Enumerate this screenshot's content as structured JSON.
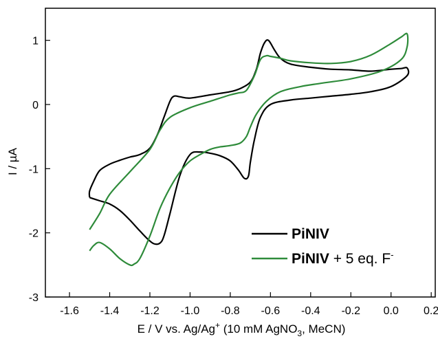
{
  "chart_data": {
    "type": "line",
    "xlabel": "E / V vs. Ag/Ag+ (10 mM AgNO3, MeCN)",
    "xlabel_parts": {
      "before_sup": "E / V vs. Ag/Ag",
      "sup": "+",
      "middle": " (10 mM AgNO",
      "sub": "3",
      "after": ", MeCN)"
    },
    "ylabel": "I / µA",
    "xlim": [
      -1.72,
      0.22
    ],
    "ylim": [
      -3,
      1.5
    ],
    "xticks": [
      -1.6,
      -1.4,
      -1.2,
      -1.0,
      -0.8,
      -0.6,
      -0.4,
      -0.2,
      0.0,
      0.2
    ],
    "xtick_labels": [
      "-1.6",
      "-1.4",
      "-1.2",
      "-1.0",
      "-0.8",
      "-0.6",
      "-0.4",
      "-0.2",
      "0.0",
      "0.2"
    ],
    "yticks": [
      -3,
      -2,
      -1,
      0,
      1
    ],
    "ytick_labels": [
      "-3",
      "-2",
      "-1",
      "0",
      "1"
    ],
    "grid": false,
    "legend_position": "bottom-right",
    "series": [
      {
        "name": "PiNIV",
        "legend_bold": "PiNIV",
        "legend_rest": "",
        "color": "#000000",
        "x": [
          -1.5,
          -1.45,
          -1.4,
          -1.35,
          -1.3,
          -1.25,
          -1.21,
          -1.18,
          -1.15,
          -1.13,
          -1.1,
          -1.05,
          -1.0,
          -0.95,
          -0.9,
          -0.85,
          -0.8,
          -0.76,
          -0.73,
          -0.71,
          -0.7,
          -0.68,
          -0.65,
          -0.6,
          -0.5,
          -0.4,
          -0.3,
          -0.2,
          -0.1,
          0.0,
          0.08,
          0.08,
          0.05,
          0.0,
          -0.1,
          -0.2,
          -0.3,
          -0.4,
          -0.5,
          -0.55,
          -0.58,
          -0.61,
          -0.63,
          -0.65,
          -0.67,
          -0.7,
          -0.75,
          -0.8,
          -0.9,
          -1.0,
          -1.05,
          -1.08,
          -1.1,
          -1.13,
          -1.16,
          -1.2,
          -1.25,
          -1.3,
          -1.35,
          -1.4,
          -1.45,
          -1.48,
          -1.5,
          -1.5
        ],
        "y": [
          -1.45,
          -1.5,
          -1.55,
          -1.65,
          -1.8,
          -1.97,
          -2.1,
          -2.17,
          -2.16,
          -2.05,
          -1.7,
          -1.1,
          -0.78,
          -0.74,
          -0.76,
          -0.8,
          -0.88,
          -1.02,
          -1.15,
          -1.12,
          -0.9,
          -0.55,
          -0.2,
          0.0,
          0.07,
          0.1,
          0.13,
          0.16,
          0.2,
          0.28,
          0.45,
          0.57,
          0.56,
          0.55,
          0.52,
          0.54,
          0.55,
          0.58,
          0.63,
          0.72,
          0.85,
          1.0,
          0.96,
          0.8,
          0.55,
          0.35,
          0.25,
          0.2,
          0.15,
          0.1,
          0.12,
          0.13,
          0.05,
          -0.2,
          -0.45,
          -0.68,
          -0.78,
          -0.82,
          -0.87,
          -0.93,
          -1.03,
          -1.2,
          -1.35,
          -1.45
        ]
      },
      {
        "name": "PiNIV + 5 eq. F-",
        "legend_bold": "PiNIV",
        "legend_rest": " + 5 eq. F",
        "legend_sup": "-",
        "color": "#2e8b3a",
        "x": [
          -1.5,
          -1.48,
          -1.45,
          -1.4,
          -1.35,
          -1.3,
          -1.28,
          -1.25,
          -1.2,
          -1.15,
          -1.1,
          -1.05,
          -1.0,
          -0.95,
          -0.9,
          -0.85,
          -0.8,
          -0.75,
          -0.72,
          -0.7,
          -0.67,
          -0.62,
          -0.55,
          -0.45,
          -0.35,
          -0.2,
          -0.05,
          0.05,
          0.08,
          0.08,
          0.05,
          0.0,
          -0.1,
          -0.2,
          -0.3,
          -0.4,
          -0.5,
          -0.55,
          -0.6,
          -0.62,
          -0.65,
          -0.68,
          -0.72,
          -0.76,
          -0.8,
          -0.9,
          -1.0,
          -1.1,
          -1.15,
          -1.2,
          -1.3,
          -1.4,
          -1.45,
          -1.5
        ],
        "y": [
          -2.28,
          -2.2,
          -2.15,
          -2.25,
          -2.4,
          -2.5,
          -2.49,
          -2.4,
          -2.05,
          -1.62,
          -1.3,
          -1.05,
          -0.88,
          -0.78,
          -0.7,
          -0.66,
          -0.64,
          -0.6,
          -0.5,
          -0.35,
          -0.15,
          0.05,
          0.2,
          0.28,
          0.33,
          0.4,
          0.52,
          0.7,
          0.9,
          1.1,
          1.05,
          0.95,
          0.77,
          0.67,
          0.64,
          0.65,
          0.68,
          0.72,
          0.75,
          0.76,
          0.7,
          0.45,
          0.22,
          0.18,
          0.15,
          0.05,
          -0.05,
          -0.2,
          -0.4,
          -0.7,
          -1.05,
          -1.4,
          -1.7,
          -1.95
        ]
      }
    ]
  }
}
